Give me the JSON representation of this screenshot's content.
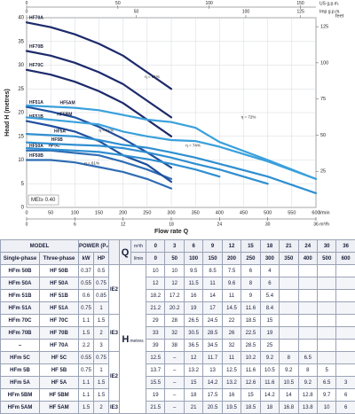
{
  "chart": {
    "type": "line",
    "y_label": "Head H (metres)",
    "x_label": "Flow rate Q",
    "x_unit": "l/min",
    "x2_unit": "m³/h",
    "top_unit": "US g.p.m.",
    "top2_unit": "Imp g.p.m.",
    "y2_unit": "feet",
    "xlim": [
      0,
      600
    ],
    "xticks": [
      0,
      50,
      100,
      150,
      200,
      250,
      300,
      350,
      400,
      450,
      500,
      550,
      600
    ],
    "ylim": [
      0,
      40
    ],
    "yticks": [
      0,
      5,
      10,
      15,
      20,
      25,
      30,
      35,
      40
    ],
    "x2lim": [
      0,
      36
    ],
    "x2ticks": [
      0,
      6,
      12,
      18,
      24,
      30,
      36
    ],
    "toplim": [
      0,
      158.5
    ],
    "topticks": [
      0,
      50,
      100,
      150
    ],
    "top2lim": [
      0,
      132
    ],
    "top2ticks": [
      0,
      50,
      100,
      125
    ],
    "y2lim": [
      0,
      131.2
    ],
    "y2ticks": [
      25,
      50,
      75,
      100,
      125
    ],
    "grid": true,
    "curve_labels": [
      "HF50B",
      "HF50A",
      "HF51B",
      "HF51A",
      "HF70C",
      "HF70B",
      "HF70A",
      "HF5C",
      "HF5B",
      "HF5A",
      "HF5BM",
      "HF5AM"
    ],
    "curve_colors": [
      "#2f6db3",
      "#2f6db3",
      "#1f4f9e",
      "#1f4f9e",
      "#1c2a6b",
      "#1c2a6b",
      "#1c2a6b",
      "#2f8fd1",
      "#2f8fd1",
      "#2f8fd1",
      "#3aa0dc",
      "#3aa0dc"
    ],
    "annotations": [
      "η = 61%",
      "η = 72%",
      "η = 61%",
      "η = 74%",
      "η = 61%"
    ],
    "legend": "MEI≥ 0.40"
  },
  "table": {
    "header": {
      "model": "MODEL",
      "power": "POWER (P₂)",
      "q": "Q",
      "q_m3h": "m³/h",
      "q_lmin": "l/min",
      "single": "Single-phase",
      "three": "Three-phase",
      "kw": "kW",
      "hp": "HP",
      "h": "H",
      "h_unit": "metres"
    },
    "m3h": [
      0,
      3,
      6,
      9,
      12,
      15,
      18,
      21,
      24,
      30,
      36
    ],
    "lmin": [
      0,
      50,
      100,
      150,
      200,
      250,
      300,
      350,
      400,
      500,
      600
    ],
    "rows": [
      {
        "single": "HFm 50B",
        "three": "HF 50B",
        "kw": 0.37,
        "hp": 0.5,
        "ie": "IE2",
        "h": [
          10,
          10,
          9.5,
          8.5,
          7.5,
          6,
          4,
          null,
          null,
          null,
          null
        ]
      },
      {
        "single": "HFm 50A",
        "three": "HF 50A",
        "kw": 0.55,
        "hp": 0.75,
        "ie": null,
        "h": [
          12,
          12,
          11.5,
          11,
          9.6,
          8,
          6,
          null,
          null,
          null,
          null
        ]
      },
      {
        "single": "HFm 51B",
        "three": "HF 51B",
        "kw": 0.6,
        "hp": 0.85,
        "ie": null,
        "h": [
          18.2,
          17.2,
          16,
          14,
          11,
          9,
          5.4,
          null,
          null,
          null,
          null
        ]
      },
      {
        "single": "HFm 51A",
        "three": "HF 51A",
        "kw": 0.75,
        "hp": 1,
        "ie": null,
        "h": [
          21.2,
          20.2,
          19,
          17,
          14.5,
          11.6,
          8.4,
          null,
          null,
          null,
          null
        ]
      },
      {
        "single": "HFm 70C",
        "three": "HF 70C",
        "kw": 1.1,
        "hp": 1.5,
        "ie": "IE3",
        "h": [
          29,
          28,
          26.5,
          24.5,
          22,
          18.5,
          15,
          null,
          null,
          null,
          null
        ]
      },
      {
        "single": "HFm 70B",
        "three": "HF 70B",
        "kw": 1.5,
        "hp": 2,
        "ie": null,
        "h": [
          33,
          32,
          30.5,
          28.5,
          26,
          22.5,
          19,
          null,
          null,
          null,
          null
        ]
      },
      {
        "single": "–",
        "three": "HF 70A",
        "kw": 2.2,
        "hp": 3,
        "ie": null,
        "h": [
          39,
          38,
          36.5,
          34.5,
          32,
          28.5,
          25,
          null,
          null,
          null,
          null
        ]
      },
      {
        "single": "HFm 5C",
        "three": "HF 5C",
        "kw": 0.55,
        "hp": 0.75,
        "ie": "IE2",
        "h": [
          12.5,
          "–",
          12,
          11.7,
          11,
          10.2,
          9.2,
          8,
          6.5,
          null,
          null
        ]
      },
      {
        "single": "HFm 5B",
        "three": "HF 5B",
        "kw": 0.75,
        "hp": 1,
        "ie": null,
        "h": [
          13.7,
          "–",
          13.2,
          13,
          12.5,
          11.6,
          10.5,
          9.2,
          8,
          5,
          null
        ]
      },
      {
        "single": "HFm 5A",
        "three": "HF 5A",
        "kw": 1.1,
        "hp": 1.5,
        "ie": null,
        "h": [
          15.5,
          "–",
          15,
          14.2,
          13.2,
          12.6,
          11.6,
          10.5,
          9.2,
          6.5,
          3
        ]
      },
      {
        "single": "HFm 5BM",
        "three": "HF 5BM",
        "kw": 1.1,
        "hp": 1.5,
        "ie": null,
        "h": [
          19,
          "–",
          18,
          17.5,
          16,
          15,
          14.2,
          14,
          12.8,
          9.7,
          6
        ]
      },
      {
        "single": "HFm 5AM",
        "three": "HF 5AM",
        "kw": 1.5,
        "hp": 2,
        "ie": "IE3",
        "h": [
          21.5,
          "–",
          21,
          20.5,
          19.5,
          18.5,
          18,
          16.8,
          13.8,
          10,
          6
        ]
      }
    ]
  }
}
